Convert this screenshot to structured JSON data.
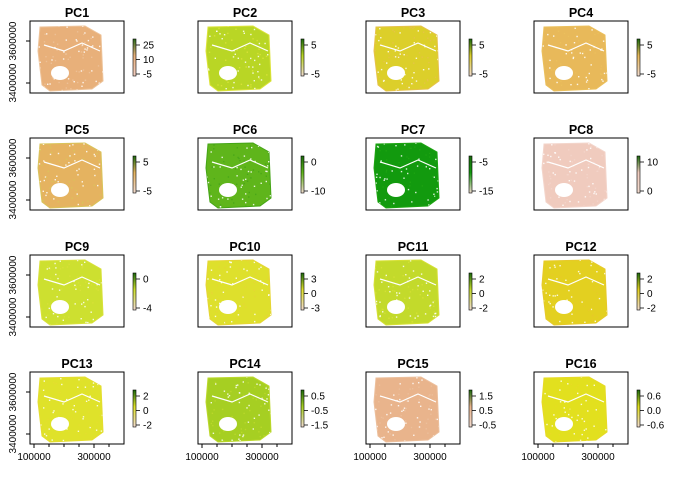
{
  "chart_data": {
    "type": "heatmap",
    "x_tick_labels": [
      "100000",
      "300000"
    ],
    "y_tick_labels": [
      "3400000",
      "3600000"
    ],
    "panels": [
      {
        "title": "PC1",
        "fill": "#e8b07a",
        "fill2": "#edc39a",
        "bar_top": "#2d6b1e",
        "bar_bottom": "#f2cfc4",
        "legend_ticks": [
          "25",
          "10",
          "-5"
        ]
      },
      {
        "title": "PC2",
        "fill": "#b9d625",
        "fill2": "#dce33a",
        "bar_top": "#1c6a0e",
        "bar_bottom": "#f2dcd0",
        "legend_ticks": [
          "5",
          "-5"
        ]
      },
      {
        "title": "PC3",
        "fill": "#dccf2a",
        "fill2": "#e6c24a",
        "bar_top": "#1c6a0e",
        "bar_bottom": "#f2dcd0",
        "legend_ticks": [
          "5",
          "-5"
        ]
      },
      {
        "title": "PC4",
        "fill": "#e8b95a",
        "fill2": "#ebc05d",
        "bar_top": "#1c6a0e",
        "bar_bottom": "#f2dcd0",
        "legend_ticks": [
          "5",
          "-5"
        ]
      },
      {
        "title": "PC5",
        "fill": "#e5b360",
        "fill2": "#d9c45a",
        "bar_top": "#1c6a0e",
        "bar_bottom": "#f2dcd0",
        "legend_ticks": [
          "5",
          "-5"
        ]
      },
      {
        "title": "PC6",
        "fill": "#5fb51b",
        "fill2": "#45a517",
        "bar_top": "#1c6a0e",
        "bar_bottom": "#f2dcd0",
        "legend_ticks": [
          "0",
          "-10"
        ]
      },
      {
        "title": "PC7",
        "fill": "#129a0e",
        "fill2": "#1ea512",
        "bar_top": "#1c6a0e",
        "bar_bottom": "#f2dcd0",
        "legend_ticks": [
          "-5",
          "-15"
        ]
      },
      {
        "title": "PC8",
        "fill": "#f0cbbe",
        "fill2": "#f3d5cb",
        "bar_top": "#1c6a0e",
        "bar_bottom": "#f2dcd0",
        "legend_ticks": [
          "10",
          "0"
        ]
      },
      {
        "title": "PC9",
        "fill": "#cde030",
        "fill2": "#d9e13a",
        "bar_top": "#1c6a0e",
        "bar_bottom": "#f2dcd0",
        "legend_ticks": [
          "0",
          "-4"
        ]
      },
      {
        "title": "PC10",
        "fill": "#dee02c",
        "fill2": "#e6d535",
        "bar_top": "#1c6a0e",
        "bar_bottom": "#f2dcd0",
        "legend_ticks": [
          "3",
          "0",
          "-3"
        ]
      },
      {
        "title": "PC11",
        "fill": "#c3da2b",
        "fill2": "#d6e035",
        "bar_top": "#1c6a0e",
        "bar_bottom": "#f2dcd0",
        "legend_ticks": [
          "2",
          "0",
          "-2"
        ]
      },
      {
        "title": "PC12",
        "fill": "#e3d020",
        "fill2": "#e7c92a",
        "bar_top": "#1c6a0e",
        "bar_bottom": "#f2dcd0",
        "legend_ticks": [
          "2",
          "0",
          "-2"
        ]
      },
      {
        "title": "PC13",
        "fill": "#dfe22a",
        "fill2": "#e5dd30",
        "bar_top": "#1c6a0e",
        "bar_bottom": "#f2dcd0",
        "legend_ticks": [
          "2",
          "0",
          "-2"
        ]
      },
      {
        "title": "PC14",
        "fill": "#a6cf22",
        "fill2": "#bcd82c",
        "bar_top": "#1c6a0e",
        "bar_bottom": "#f2dcd0",
        "legend_ticks": [
          "0.5",
          "-0.5",
          "-1.5"
        ]
      },
      {
        "title": "PC15",
        "fill": "#e9b48c",
        "fill2": "#ecbf9c",
        "bar_top": "#1c6a0e",
        "bar_bottom": "#f2dcd0",
        "legend_ticks": [
          "1.5",
          "0.5",
          "-0.5"
        ]
      },
      {
        "title": "PC16",
        "fill": "#e2e01e",
        "fill2": "#e7da26",
        "bar_top": "#1c6a0e",
        "bar_bottom": "#f2dcd0",
        "legend_ticks": [
          "0.6",
          "0.0",
          "-0.6"
        ]
      }
    ]
  }
}
